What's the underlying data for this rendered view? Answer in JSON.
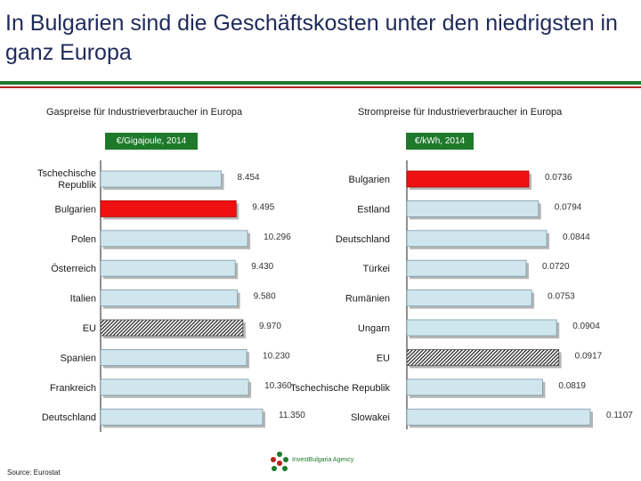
{
  "slide": {
    "title": "In Bulgarien sind die Geschäftskosten unter den niedrigsten in ganz Europa",
    "source": "Source: Eurostat",
    "logo_text": "InvestBulgaria Agency"
  },
  "colors": {
    "title": "#1f2a5a",
    "accent_green": "#1e7a2a",
    "accent_red": "#b3261e",
    "bar_default": "#cfe6ee",
    "bar_highlight": "#ee1111"
  },
  "chart_data": [
    {
      "type": "bar",
      "orientation": "horizontal",
      "title": "Gaspreise für Industrieverbraucher in Europa",
      "unit": "€/Gigajoule, 2014",
      "categories": [
        "Tschechische Republik",
        "Bulgarien",
        "Polen",
        "Österreich",
        "Italien",
        "EU",
        "Spanien",
        "Frankreich",
        "Deutschland"
      ],
      "category_lines": [
        [
          "Tschechische",
          "Republik"
        ],
        [
          "Bulgarien"
        ],
        [
          "Polen"
        ],
        [
          "Österreich"
        ],
        [
          "Italien"
        ],
        [
          "EU"
        ],
        [
          "Spanien"
        ],
        [
          "Frankreich"
        ],
        [
          "Deutschland"
        ]
      ],
      "values": [
        8.454,
        9.495,
        10.296,
        9.43,
        9.58,
        9.97,
        10.23,
        10.36,
        11.35
      ],
      "value_labels": [
        "8.454",
        "9.495",
        "10.296",
        "9.430",
        "9.580",
        "9.970",
        "10.230",
        "10.360",
        "11.350"
      ],
      "styles": [
        "normal",
        "highlight",
        "normal",
        "normal",
        "normal",
        "hatched",
        "normal",
        "normal",
        "normal"
      ],
      "xlim": [
        0,
        11.35
      ]
    },
    {
      "type": "bar",
      "orientation": "horizontal",
      "title": "Strompreise für Industrieverbraucher in Europa",
      "unit": "€/kWh, 2014",
      "categories": [
        "Bulgarien",
        "Estland",
        "Deutschland",
        "Türkei",
        "Rumänien",
        "Ungarn",
        "EU",
        "Tschechische Republik",
        "Slowakei"
      ],
      "category_lines": [
        [
          "Bulgarien"
        ],
        [
          "Estland"
        ],
        [
          "Deutschland"
        ],
        [
          "Türkei"
        ],
        [
          "Rumänien"
        ],
        [
          "Ungarn"
        ],
        [
          "EU"
        ],
        [
          "Tschechische Republik"
        ],
        [
          "Slowakei"
        ]
      ],
      "values": [
        0.0736,
        0.0794,
        0.0844,
        0.072,
        0.0753,
        0.0904,
        0.0917,
        0.0819,
        0.1107
      ],
      "value_labels": [
        "0.0736",
        "0.0794",
        "0.0844",
        "0.0720",
        "0.0753",
        "0.0904",
        "0.0917",
        "0.0819",
        "0.1107"
      ],
      "styles": [
        "highlight",
        "normal",
        "normal",
        "normal",
        "normal",
        "normal",
        "hatched",
        "normal",
        "normal"
      ],
      "xlim": [
        0,
        0.1107
      ]
    }
  ]
}
